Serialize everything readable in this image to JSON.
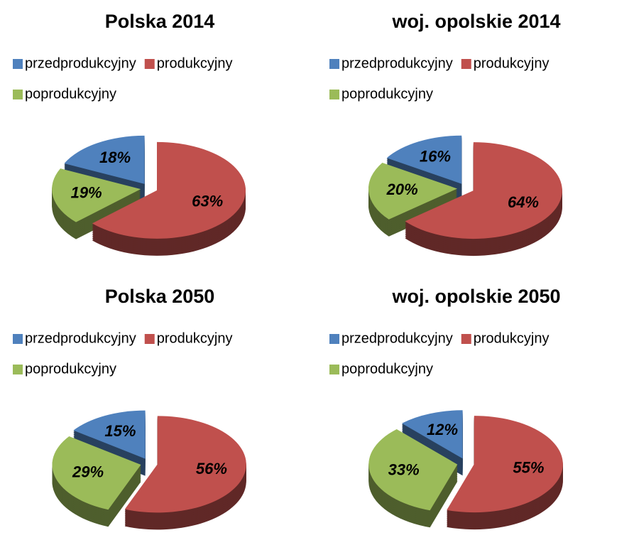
{
  "chart_data": [
    {
      "type": "pie",
      "title": "Polska 2014",
      "categories": [
        "przedprodukcyjny",
        "produkcyjny",
        "poprodukcyjny"
      ],
      "values": [
        18,
        63,
        19
      ],
      "value_labels": [
        "18%",
        "63%",
        "19%"
      ],
      "colors": [
        "#4f81bd",
        "#c0504d",
        "#9bbb59"
      ],
      "legend": "top"
    },
    {
      "type": "pie",
      "title": "woj. opolskie 2014",
      "categories": [
        "przedprodukcyjny",
        "produkcyjny",
        "poprodukcyjny"
      ],
      "values": [
        16,
        64,
        20
      ],
      "value_labels": [
        "16%",
        "64%",
        "20%"
      ],
      "colors": [
        "#4f81bd",
        "#c0504d",
        "#9bbb59"
      ],
      "legend": "top"
    },
    {
      "type": "pie",
      "title": "Polska 2050",
      "categories": [
        "przedprodukcyjny",
        "produkcyjny",
        "poprodukcyjny"
      ],
      "values": [
        15,
        56,
        29
      ],
      "value_labels": [
        "15%",
        "56%",
        "29%"
      ],
      "colors": [
        "#4f81bd",
        "#c0504d",
        "#9bbb59"
      ],
      "legend": "top"
    },
    {
      "type": "pie",
      "title": "woj. opolskie 2050",
      "categories": [
        "przedprodukcyjny",
        "produkcyjny",
        "poprodukcyjny"
      ],
      "values": [
        12,
        55,
        33
      ],
      "value_labels": [
        "12%",
        "55%",
        "33%"
      ],
      "colors": [
        "#4f81bd",
        "#c0504d",
        "#9bbb59"
      ],
      "legend": "top"
    }
  ]
}
